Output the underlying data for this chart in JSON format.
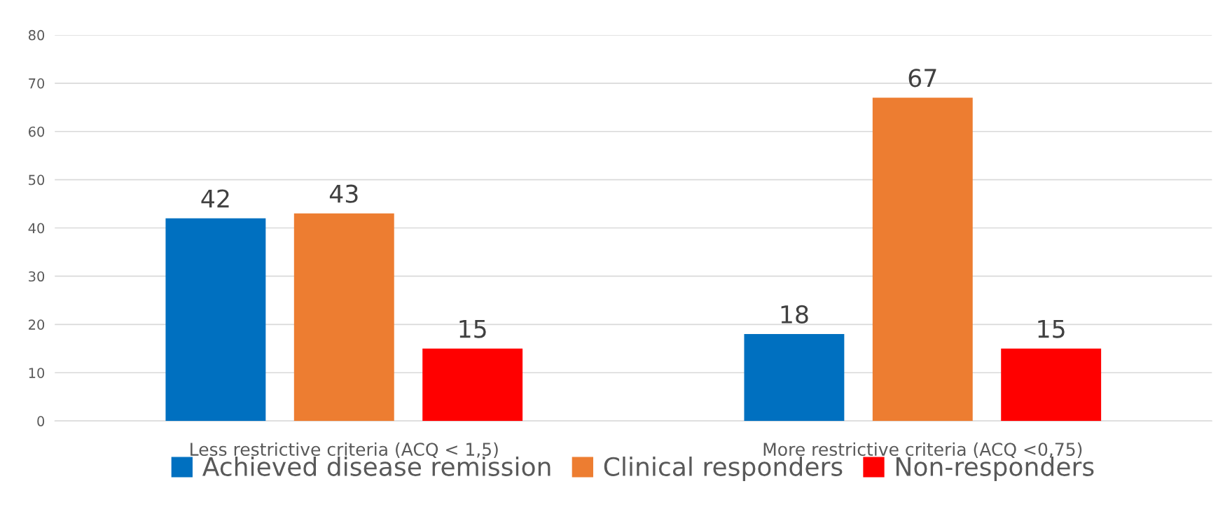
{
  "chart_data": {
    "type": "bar",
    "categories": [
      "Less restrictive criteria (ACQ < 1,5)",
      "More restrictive criteria (ACQ <0,75)"
    ],
    "series": [
      {
        "name": "Achieved disease remission",
        "color": "#0070c0",
        "values": [
          42,
          18
        ]
      },
      {
        "name": "Clinical responders",
        "color": "#ed7d31",
        "values": [
          43,
          67
        ]
      },
      {
        "name": "Non-responders",
        "color": "#ff0000",
        "values": [
          15,
          15
        ]
      }
    ],
    "ylim": [
      0,
      80
    ],
    "yticks": [
      0,
      10,
      20,
      30,
      40,
      50,
      60,
      70,
      80
    ],
    "grid": "y",
    "legend": "bottom",
    "data_labels": true
  }
}
